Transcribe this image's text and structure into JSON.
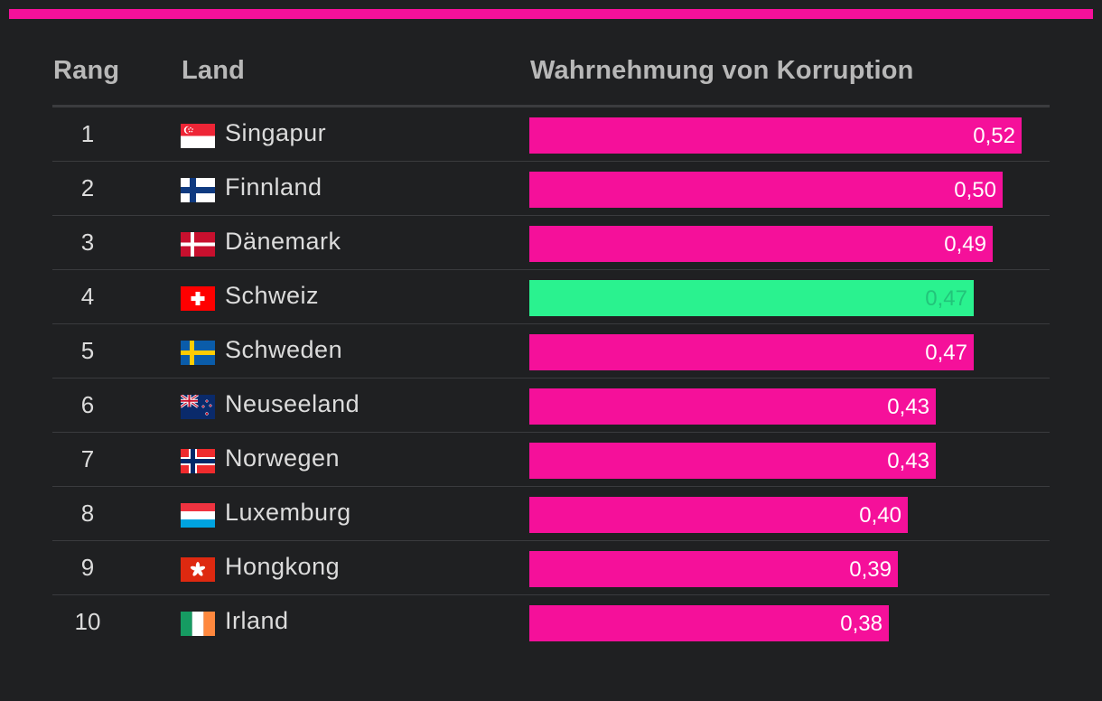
{
  "header": {
    "rank": "Rang",
    "country": "Land",
    "value": "Wahrnehmung von Korruption"
  },
  "colors": {
    "accent": "#f5109a",
    "highlight": "#2af28f",
    "background": "#1f2022"
  },
  "chart_data": {
    "type": "bar",
    "orientation": "horizontal",
    "title": "Wahrnehmung von Korruption",
    "xlim": [
      0,
      0.55
    ],
    "highlight_category": "Schweiz",
    "categories": [
      "Singapur",
      "Finnland",
      "Dänemark",
      "Schweiz",
      "Schweden",
      "Neuseeland",
      "Norwegen",
      "Luxemburg",
      "Hongkong",
      "Irland"
    ],
    "values": [
      0.52,
      0.5,
      0.49,
      0.47,
      0.47,
      0.43,
      0.43,
      0.4,
      0.39,
      0.38
    ]
  },
  "rows": [
    {
      "rank": "1",
      "country": "Singapur",
      "flag": "singapore-flag-icon",
      "value": 0.52,
      "label": "0,52",
      "highlight": false
    },
    {
      "rank": "2",
      "country": "Finnland",
      "flag": "finland-flag-icon",
      "value": 0.5,
      "label": "0,50",
      "highlight": false
    },
    {
      "rank": "3",
      "country": "Dänemark",
      "flag": "denmark-flag-icon",
      "value": 0.49,
      "label": "0,49",
      "highlight": false
    },
    {
      "rank": "4",
      "country": "Schweiz",
      "flag": "switzerland-flag-icon",
      "value": 0.47,
      "label": "0,47",
      "highlight": true
    },
    {
      "rank": "5",
      "country": "Schweden",
      "flag": "sweden-flag-icon",
      "value": 0.47,
      "label": "0,47",
      "highlight": false
    },
    {
      "rank": "6",
      "country": "Neuseeland",
      "flag": "new-zealand-flag-icon",
      "value": 0.43,
      "label": "0,43",
      "highlight": false
    },
    {
      "rank": "7",
      "country": "Norwegen",
      "flag": "norway-flag-icon",
      "value": 0.43,
      "label": "0,43",
      "highlight": false
    },
    {
      "rank": "8",
      "country": "Luxemburg",
      "flag": "luxembourg-flag-icon",
      "value": 0.4,
      "label": "0,40",
      "highlight": false
    },
    {
      "rank": "9",
      "country": "Hongkong",
      "flag": "hong-kong-flag-icon",
      "value": 0.39,
      "label": "0,39",
      "highlight": false
    },
    {
      "rank": "10",
      "country": "Irland",
      "flag": "ireland-flag-icon",
      "value": 0.38,
      "label": "0,38",
      "highlight": false
    }
  ]
}
